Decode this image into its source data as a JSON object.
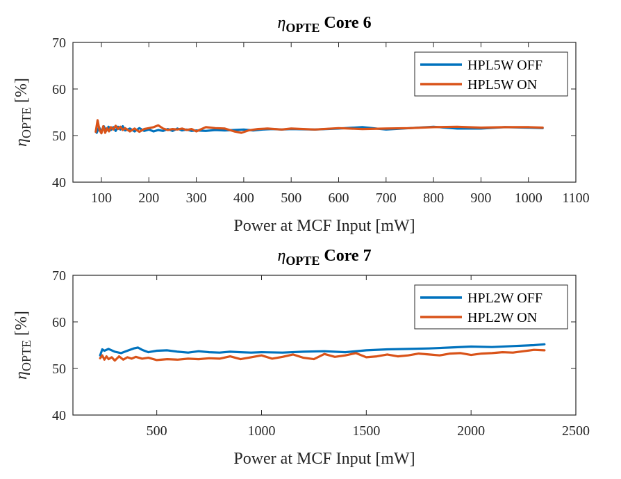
{
  "chart_data": [
    {
      "type": "line",
      "title_symbol": "η",
      "title_subscript": "OPTE",
      "title_suffix": "Core 6",
      "xlabel": "Power at MCF Input [mW]",
      "ylabel_symbol": "η",
      "ylabel_subscript": "OPTE",
      "ylabel_unit": "[%]",
      "xlim": [
        40,
        1100
      ],
      "ylim": [
        40,
        70
      ],
      "xticks": [
        100,
        200,
        300,
        400,
        500,
        600,
        700,
        800,
        900,
        1000,
        1100
      ],
      "yticks": [
        40,
        50,
        60,
        70
      ],
      "grid": false,
      "legend_position": "top-right",
      "series": [
        {
          "name": "HPL5W OFF",
          "color": "#0072BD",
          "x": [
            90,
            95,
            100,
            105,
            110,
            115,
            120,
            125,
            130,
            135,
            140,
            145,
            150,
            160,
            170,
            180,
            190,
            200,
            210,
            220,
            230,
            240,
            250,
            260,
            270,
            280,
            290,
            300,
            320,
            340,
            360,
            380,
            400,
            420,
            440,
            460,
            480,
            500,
            550,
            600,
            650,
            700,
            750,
            800,
            850,
            900,
            950,
            1000,
            1030
          ],
          "y": [
            50.6,
            51.8,
            50.8,
            52.0,
            51.0,
            51.9,
            51.2,
            51.8,
            51.0,
            51.9,
            51.3,
            52.0,
            51.1,
            51.5,
            50.9,
            51.6,
            51.0,
            51.3,
            50.9,
            51.2,
            51.0,
            51.4,
            51.0,
            51.5,
            51.1,
            51.3,
            51.0,
            51.1,
            51.0,
            51.2,
            51.1,
            51.2,
            51.3,
            51.1,
            51.3,
            51.4,
            51.3,
            51.4,
            51.3,
            51.5,
            51.8,
            51.3,
            51.6,
            51.9,
            51.5,
            51.5,
            51.8,
            51.7,
            51.6
          ]
        },
        {
          "name": "HPL5W ON",
          "color": "#D95319",
          "x": [
            88,
            92,
            96,
            100,
            104,
            108,
            112,
            116,
            120,
            125,
            130,
            135,
            140,
            145,
            150,
            160,
            170,
            180,
            190,
            200,
            210,
            220,
            230,
            240,
            250,
            260,
            270,
            280,
            290,
            300,
            320,
            340,
            360,
            380,
            395,
            410,
            430,
            450,
            480,
            500,
            550,
            600,
            650,
            700,
            750,
            800,
            850,
            900,
            950,
            1000,
            1030
          ],
          "y": [
            50.8,
            53.3,
            51.2,
            50.5,
            52.0,
            50.6,
            51.6,
            50.9,
            51.8,
            51.3,
            52.1,
            51.4,
            51.9,
            51.2,
            51.6,
            50.9,
            51.5,
            50.8,
            51.4,
            51.6,
            51.8,
            52.2,
            51.5,
            51.2,
            51.4,
            51.3,
            51.5,
            51.2,
            51.4,
            50.9,
            51.8,
            51.6,
            51.5,
            50.9,
            50.6,
            51.1,
            51.4,
            51.5,
            51.3,
            51.5,
            51.3,
            51.6,
            51.4,
            51.5,
            51.6,
            51.8,
            51.9,
            51.7,
            51.8,
            51.8,
            51.7
          ]
        }
      ]
    },
    {
      "type": "line",
      "title_symbol": "η",
      "title_subscript": "OPTE",
      "title_suffix": "Core 7",
      "xlabel": "Power at MCF Input [mW]",
      "ylabel_symbol": "η",
      "ylabel_subscript": "OPTE",
      "ylabel_unit": "[%]",
      "xlim": [
        100,
        2500
      ],
      "ylim": [
        40,
        70
      ],
      "xticks": [
        500,
        1000,
        1500,
        2000,
        2500
      ],
      "yticks": [
        40,
        50,
        60,
        70
      ],
      "grid": false,
      "legend_position": "top-right",
      "series": [
        {
          "name": "HPL2W OFF",
          "color": "#0072BD",
          "x": [
            230,
            240,
            250,
            270,
            300,
            330,
            360,
            390,
            410,
            430,
            460,
            500,
            550,
            600,
            650,
            700,
            750,
            800,
            850,
            900,
            950,
            1000,
            1100,
            1200,
            1300,
            1400,
            1500,
            1600,
            1700,
            1800,
            1900,
            2000,
            2100,
            2200,
            2300,
            2350
          ],
          "y": [
            52.8,
            54.1,
            53.8,
            54.2,
            53.6,
            53.3,
            53.8,
            54.3,
            54.5,
            54.0,
            53.5,
            53.8,
            53.9,
            53.6,
            53.4,
            53.7,
            53.5,
            53.4,
            53.6,
            53.5,
            53.4,
            53.5,
            53.4,
            53.6,
            53.7,
            53.5,
            53.9,
            54.1,
            54.2,
            54.3,
            54.5,
            54.7,
            54.6,
            54.8,
            55.0,
            55.2
          ]
        },
        {
          "name": "HPL2W ON",
          "color": "#D95319",
          "x": [
            230,
            240,
            250,
            260,
            270,
            285,
            300,
            320,
            340,
            360,
            380,
            400,
            430,
            460,
            500,
            550,
            600,
            650,
            700,
            750,
            800,
            850,
            900,
            950,
            1000,
            1050,
            1100,
            1150,
            1200,
            1250,
            1300,
            1350,
            1400,
            1450,
            1500,
            1550,
            1600,
            1650,
            1700,
            1750,
            1800,
            1850,
            1900,
            1950,
            2000,
            2050,
            2100,
            2150,
            2200,
            2250,
            2300,
            2350
          ],
          "y": [
            52.2,
            52.8,
            51.9,
            52.6,
            52.0,
            52.4,
            51.7,
            52.6,
            51.9,
            52.4,
            52.1,
            52.5,
            52.1,
            52.3,
            51.8,
            52.0,
            51.9,
            52.1,
            52.0,
            52.2,
            52.1,
            52.6,
            52.0,
            52.4,
            52.8,
            52.1,
            52.5,
            53.0,
            52.3,
            52.0,
            53.1,
            52.5,
            52.8,
            53.3,
            52.4,
            52.6,
            53.0,
            52.6,
            52.8,
            53.2,
            53.0,
            52.8,
            53.2,
            53.3,
            52.9,
            53.2,
            53.3,
            53.5,
            53.4,
            53.7,
            54.0,
            53.9
          ]
        }
      ]
    }
  ]
}
